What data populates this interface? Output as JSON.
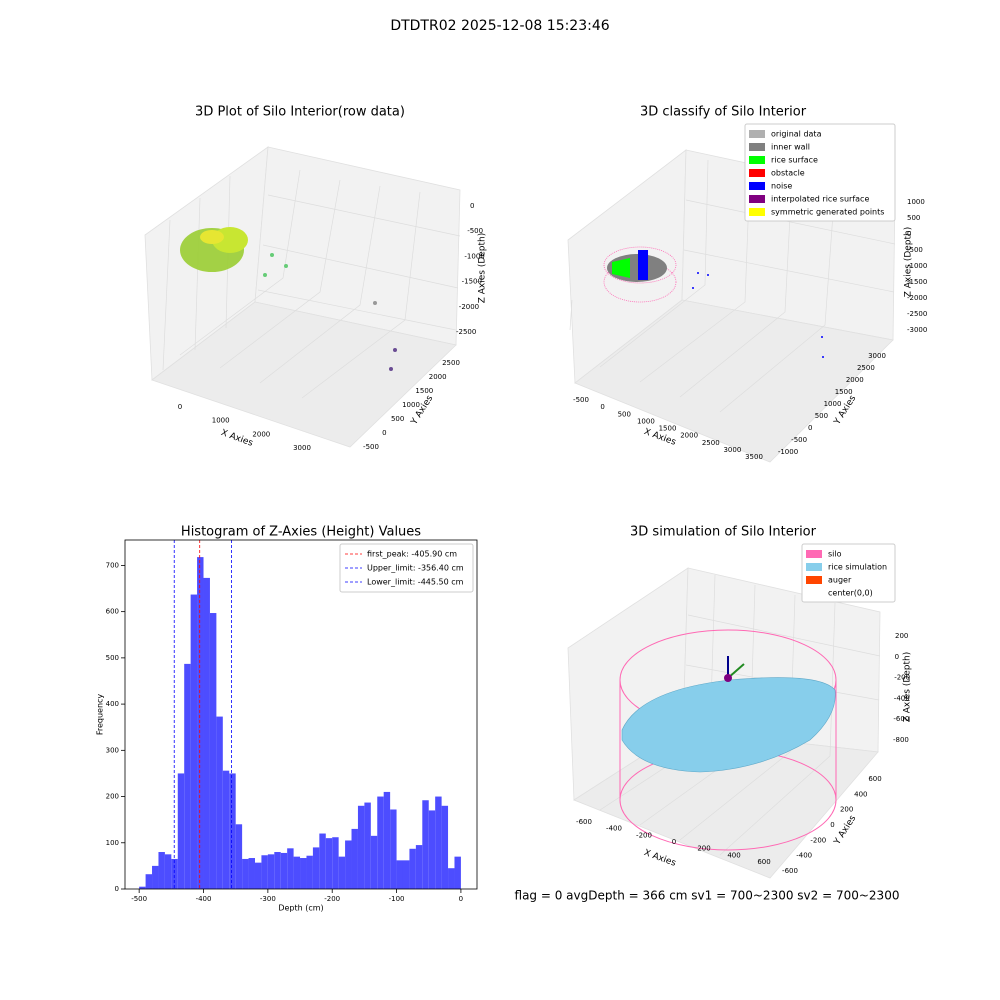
{
  "suptitle": "DTDTR02 2025-12-08 15:23:46",
  "footer": "flag = 0     avgDepth = 366 cm  sv1 = 700~2300  sv2 = 700~2300",
  "chart_data": [
    {
      "type": "scatter3d",
      "title": "3D Plot of Silo Interior(row data)",
      "xlabel": "X Axies",
      "ylabel": "Y Axies",
      "zlabel": "Z Axies (Depth)",
      "xticks": [
        0,
        1000,
        2000,
        3000
      ],
      "yticks": [
        -500,
        0,
        500,
        1000,
        1500,
        2000,
        2500
      ],
      "zticks": [
        0,
        -500,
        -1000,
        -1500,
        -2000,
        -2500
      ]
    },
    {
      "type": "scatter3d",
      "title": "3D classify of Silo Interior",
      "xlabel": "X Axies",
      "ylabel": "Y Axies",
      "zlabel": "Z Axies (Depth)",
      "xticks": [
        -500,
        0,
        500,
        1000,
        1500,
        2000,
        2500,
        3000,
        3500
      ],
      "yticks": [
        -1000,
        -500,
        0,
        500,
        1000,
        1500,
        2000,
        2500,
        3000
      ],
      "zticks": [
        1000,
        500,
        0,
        -500,
        -1000,
        -1500,
        -2000,
        -2500,
        -3000
      ],
      "legend": [
        {
          "name": "original data",
          "color": "#b0b0b0"
        },
        {
          "name": "inner wall",
          "color": "#808080"
        },
        {
          "name": "rice surface",
          "color": "#00ff00"
        },
        {
          "name": "obstacle",
          "color": "#ff0000"
        },
        {
          "name": "noise",
          "color": "#0000ff"
        },
        {
          "name": "interpolated rice surface",
          "color": "#800080"
        },
        {
          "name": "symmetric generated points",
          "color": "#ffff00"
        }
      ]
    },
    {
      "type": "histogram",
      "title": "Histogram of Z-Axies (Height) Values",
      "xlabel": "Depth (cm)",
      "ylabel": "Frequency",
      "color": "#4d4dff",
      "bins": [
        -500,
        -490,
        -480,
        -470,
        -460,
        -450,
        -440,
        -430,
        -420,
        -410,
        -400,
        -390,
        -380,
        -370,
        -360,
        -350,
        -340,
        -330,
        -320,
        -310,
        -300,
        -290,
        -280,
        -270,
        -260,
        -250,
        -240,
        -230,
        -220,
        -210,
        -200,
        -190,
        -180,
        -170,
        -160,
        -150,
        -140,
        -130,
        -120,
        -110,
        -100,
        -90,
        -80,
        -70,
        -60,
        -50,
        -40,
        -30,
        -20,
        -10,
        0
      ],
      "values": [
        5,
        32,
        50,
        80,
        75,
        65,
        250,
        487,
        637,
        718,
        673,
        597,
        373,
        256,
        250,
        140,
        65,
        67,
        57,
        73,
        75,
        80,
        78,
        88,
        70,
        67,
        72,
        90,
        120,
        110,
        112,
        70,
        105,
        130,
        180,
        187,
        115,
        200,
        210,
        172,
        62,
        62,
        87,
        95,
        192,
        170,
        200,
        180,
        45,
        70
      ],
      "xlim": [
        -522,
        25
      ],
      "ylim": [
        0,
        755
      ],
      "xticks": [
        -500,
        -400,
        -300,
        -200,
        -100,
        0
      ],
      "yticks": [
        0,
        100,
        200,
        300,
        400,
        500,
        600,
        700
      ],
      "legend_position": "upper right",
      "vlines": [
        {
          "name": "first_peak: -405.90 cm",
          "value": -405.9,
          "color": "#ff0000"
        },
        {
          "name": "Upper_limit: -356.40 cm",
          "value": -356.4,
          "color": "#0000ff"
        },
        {
          "name": "Lower_limit: -445.50 cm",
          "value": -445.5,
          "color": "#0000ff"
        }
      ]
    },
    {
      "type": "scatter3d",
      "title": "3D simulation of Silo Interior",
      "xlabel": "X Axies",
      "ylabel": "Y Axies",
      "zlabel": "Z Axies (Depth)",
      "xticks": [
        -600,
        -400,
        -200,
        0,
        200,
        400,
        600
      ],
      "yticks": [
        -600,
        -400,
        -200,
        0,
        200,
        400,
        600
      ],
      "zticks": [
        200,
        0,
        -200,
        -400,
        -600,
        -800
      ],
      "legend": [
        {
          "name": "silo",
          "color": "#ff69b4"
        },
        {
          "name": "rice simulation",
          "color": "#87ceeb"
        },
        {
          "name": "auger",
          "color": "#ff4500"
        },
        {
          "name": "center(0,0)",
          "color": "#ffffff"
        }
      ]
    }
  ]
}
